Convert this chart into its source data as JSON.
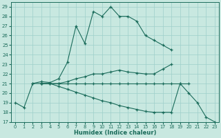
{
  "xlabel": "Humidex (Indice chaleur)",
  "xlim": [
    -0.5,
    23.5
  ],
  "ylim": [
    17,
    29.5
  ],
  "yticks": [
    17,
    18,
    19,
    20,
    21,
    22,
    23,
    24,
    25,
    26,
    27,
    28,
    29
  ],
  "xticks": [
    0,
    1,
    2,
    3,
    4,
    5,
    6,
    7,
    8,
    9,
    10,
    11,
    12,
    13,
    14,
    15,
    16,
    17,
    18,
    19,
    20,
    21,
    22,
    23
  ],
  "background_color": "#c8e8e0",
  "line_color": "#1a6b5a",
  "grid_color": "#9ecfca",
  "line1_x": [
    2,
    3,
    4,
    5,
    6,
    7,
    8,
    9,
    10,
    11,
    12,
    13,
    14,
    15,
    16,
    17,
    18
  ],
  "line1_y": [
    21.0,
    21.2,
    21.1,
    21.5,
    23.2,
    27.0,
    25.2,
    28.5,
    28.0,
    29.0,
    28.0,
    28.0,
    27.5,
    26.0,
    25.5,
    25.0,
    24.5
  ],
  "line2_x": [
    3,
    4,
    5,
    6,
    7,
    8,
    9,
    10,
    11,
    12,
    13,
    14,
    15,
    16,
    17,
    18
  ],
  "line2_y": [
    21.0,
    21.0,
    21.0,
    21.2,
    21.5,
    21.7,
    22.0,
    22.0,
    22.2,
    22.4,
    22.2,
    22.1,
    22.0,
    22.0,
    22.5,
    23.0
  ],
  "line3_x": [
    3,
    4,
    5,
    6,
    7,
    8,
    9,
    10,
    11,
    12,
    13,
    14,
    15,
    16,
    17,
    18,
    19,
    20
  ],
  "line3_y": [
    21.0,
    21.0,
    21.0,
    21.0,
    21.0,
    21.0,
    21.0,
    21.0,
    21.0,
    21.0,
    21.0,
    21.0,
    21.0,
    21.0,
    21.0,
    21.0,
    21.0,
    21.0
  ],
  "line4_x": [
    3,
    4,
    5,
    6,
    7,
    8,
    9,
    10,
    11,
    12,
    13,
    14,
    15,
    16,
    17,
    18,
    19,
    20,
    21,
    22,
    23
  ],
  "line4_y": [
    21.0,
    21.0,
    20.7,
    20.4,
    20.1,
    19.8,
    19.5,
    19.2,
    19.0,
    18.7,
    18.5,
    18.3,
    18.1,
    18.0,
    18.0,
    18.0,
    21.0,
    20.0,
    19.0,
    17.5,
    17.0
  ],
  "line0_x": [
    0,
    1,
    2,
    3
  ],
  "line0_y": [
    19.0,
    18.5,
    21.0,
    21.0
  ]
}
